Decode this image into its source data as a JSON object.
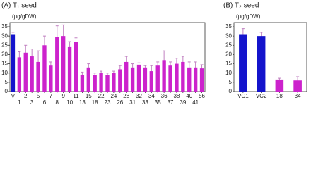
{
  "chart_data": [
    {
      "type": "bar",
      "title": "(A) T₁ seed",
      "ylabel": "(μg/gDW)",
      "categories": [
        "V",
        "1",
        "2",
        "3",
        "5",
        "6",
        "7",
        "8",
        "9",
        "10",
        "11",
        "13",
        "15",
        "18",
        "22",
        "23",
        "24",
        "26",
        "28",
        "31",
        "32",
        "33",
        "34",
        "35",
        "36",
        "37",
        "38",
        "39",
        "40",
        "41",
        "56"
      ],
      "values": [
        31,
        18.5,
        21,
        19,
        16,
        25,
        14,
        29.5,
        30,
        24,
        27,
        9,
        13,
        9,
        10,
        9,
        10,
        12,
        16,
        13,
        14.5,
        13,
        11,
        14,
        17,
        14,
        15,
        16,
        13,
        13,
        12.5
      ],
      "errors": [
        1,
        3,
        4,
        4,
        6,
        5,
        2,
        6,
        6,
        3,
        2,
        1.5,
        2,
        1,
        1,
        1,
        1,
        2,
        3,
        2,
        1,
        1,
        3,
        2,
        5,
        2,
        3,
        3,
        3,
        3,
        2
      ],
      "colors": [
        "#1414cc",
        "#cc22cc",
        "#cc22cc",
        "#cc22cc",
        "#cc22cc",
        "#cc22cc",
        "#cc22cc",
        "#cc22cc",
        "#cc22cc",
        "#cc22cc",
        "#cc22cc",
        "#cc22cc",
        "#cc22cc",
        "#cc22cc",
        "#cc22cc",
        "#cc22cc",
        "#cc22cc",
        "#cc22cc",
        "#cc22cc",
        "#cc22cc",
        "#cc22cc",
        "#cc22cc",
        "#cc22cc",
        "#cc22cc",
        "#cc22cc",
        "#cc22cc",
        "#cc22cc",
        "#cc22cc",
        "#cc22cc",
        "#cc22cc",
        "#cc22cc"
      ],
      "ylim": [
        0,
        35
      ],
      "yticks": [
        0,
        5,
        10,
        15,
        20,
        25,
        30,
        35
      ]
    },
    {
      "type": "bar",
      "title": "(B) T₂ seed",
      "ylabel": "(μg/gDW)",
      "categories": [
        "VC1",
        "VC2",
        "18",
        "34"
      ],
      "values": [
        31,
        30,
        6.5,
        6
      ],
      "errors": [
        3,
        2,
        0.7,
        2
      ],
      "colors": [
        "#1414cc",
        "#1414cc",
        "#cc22cc",
        "#cc22cc"
      ],
      "ylim": [
        0,
        35
      ],
      "yticks": [
        0,
        5,
        10,
        15,
        20,
        25,
        30,
        35
      ]
    }
  ]
}
